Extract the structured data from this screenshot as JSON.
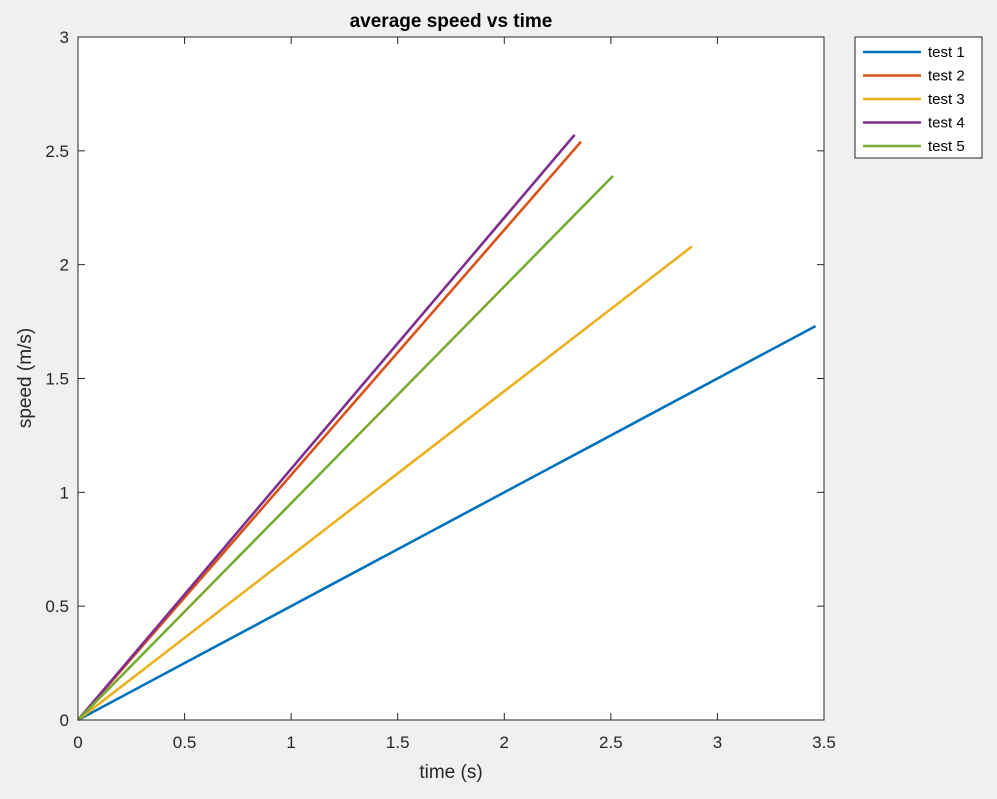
{
  "chart_data": {
    "type": "line",
    "title": "average speed vs time",
    "xlabel": "time (s)",
    "ylabel": "speed (m/s)",
    "xlim": [
      0,
      3.5
    ],
    "ylim": [
      0,
      3
    ],
    "xticks": [
      "0",
      "0.5",
      "1",
      "1.5",
      "2",
      "2.5",
      "3",
      "3.5"
    ],
    "yticks": [
      "0",
      "0.5",
      "1",
      "1.5",
      "2",
      "2.5",
      "3"
    ],
    "grid": false,
    "legend_position": "outside top-right",
    "series": [
      {
        "name": "test 1",
        "color": "#0072BD",
        "x": [
          0,
          3.46
        ],
        "y": [
          0,
          1.73
        ]
      },
      {
        "name": "test 2",
        "color": "#D95319",
        "x": [
          0,
          2.36
        ],
        "y": [
          0,
          2.54
        ]
      },
      {
        "name": "test 3",
        "color": "#EDB120",
        "x": [
          0,
          2.88
        ],
        "y": [
          0,
          2.08
        ]
      },
      {
        "name": "test 4",
        "color": "#7E2F8E",
        "x": [
          0,
          2.33
        ],
        "y": [
          0,
          2.57
        ]
      },
      {
        "name": "test 5",
        "color": "#77AC30",
        "x": [
          0,
          2.51
        ],
        "y": [
          0,
          2.39
        ]
      }
    ]
  }
}
